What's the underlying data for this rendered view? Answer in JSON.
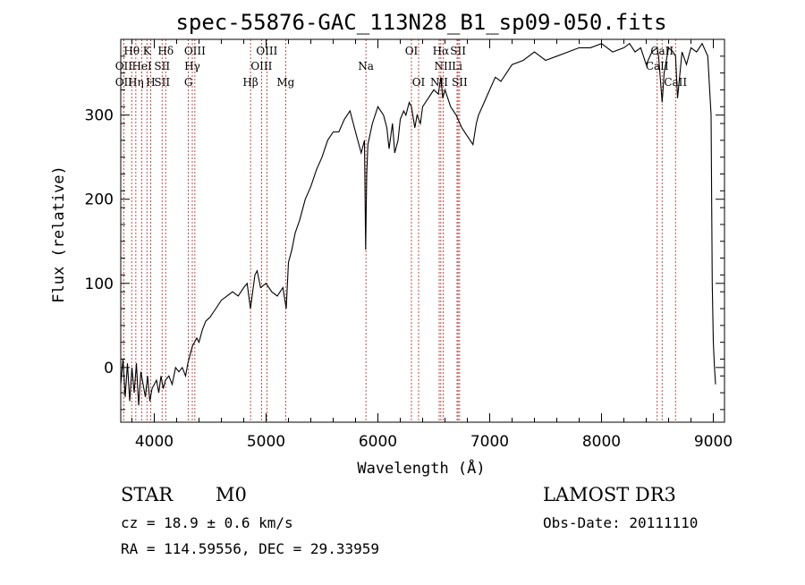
{
  "chart_data": {
    "type": "line",
    "title": "spec-55876-GAC_113N28_B1_sp09-050.fits",
    "xlabel": "Wavelength (Å)",
    "ylabel": "Flux (relative)",
    "xlim": [
      3700,
      9100
    ],
    "ylim": [
      -65,
      390
    ],
    "x_ticks": [
      4000,
      5000,
      6000,
      7000,
      8000,
      9000
    ],
    "y_ticks": [
      0,
      100,
      200,
      300
    ],
    "grid": false,
    "series": [
      {
        "color": "#000000",
        "x": [
          3700,
          3720,
          3740,
          3760,
          3780,
          3800,
          3820,
          3840,
          3860,
          3880,
          3900,
          3920,
          3940,
          3960,
          3980,
          4000,
          4020,
          4040,
          4060,
          4080,
          4100,
          4130,
          4160,
          4190,
          4220,
          4250,
          4280,
          4300,
          4320,
          4340,
          4360,
          4380,
          4400,
          4430,
          4460,
          4500,
          4550,
          4600,
          4650,
          4700,
          4750,
          4800,
          4830,
          4860,
          4880,
          4900,
          4920,
          4950,
          5000,
          5050,
          5100,
          5150,
          5180,
          5200,
          5230,
          5260,
          5300,
          5350,
          5400,
          5450,
          5500,
          5550,
          5600,
          5650,
          5700,
          5750,
          5800,
          5850,
          5880,
          5890,
          5900,
          5910,
          5950,
          6000,
          6050,
          6080,
          6100,
          6130,
          6150,
          6180,
          6200,
          6230,
          6250,
          6280,
          6300,
          6330,
          6350,
          6380,
          6400,
          6450,
          6500,
          6540,
          6563,
          6580,
          6600,
          6650,
          6700,
          6750,
          6800,
          6850,
          6880,
          6900,
          6950,
          7000,
          7050,
          7100,
          7150,
          7200,
          7300,
          7400,
          7500,
          7600,
          7700,
          7800,
          7900,
          8000,
          8100,
          8200,
          8250,
          8300,
          8350,
          8400,
          8450,
          8498,
          8510,
          8542,
          8560,
          8600,
          8640,
          8662,
          8680,
          8720,
          8760,
          8800,
          8850,
          8900,
          8950,
          8980,
          8990,
          9000,
          9010,
          9020
        ],
        "y": [
          -20,
          10,
          -35,
          5,
          -40,
          0,
          -30,
          5,
          -45,
          -5,
          -20,
          -35,
          -10,
          -40,
          -25,
          -20,
          -15,
          -30,
          -10,
          -25,
          -15,
          -10,
          -20,
          0,
          -5,
          0,
          -10,
          5,
          15,
          25,
          30,
          35,
          30,
          45,
          55,
          60,
          70,
          80,
          85,
          90,
          85,
          95,
          100,
          70,
          90,
          110,
          115,
          95,
          100,
          90,
          85,
          95,
          70,
          125,
          140,
          160,
          175,
          200,
          215,
          235,
          250,
          270,
          280,
          280,
          295,
          305,
          280,
          255,
          270,
          140,
          230,
          265,
          290,
          310,
          300,
          285,
          260,
          290,
          255,
          270,
          295,
          305,
          300,
          315,
          310,
          285,
          300,
          290,
          310,
          320,
          330,
          325,
          345,
          320,
          330,
          310,
          300,
          285,
          275,
          265,
          290,
          300,
          315,
          330,
          345,
          340,
          350,
          360,
          365,
          375,
          365,
          370,
          375,
          380,
          380,
          385,
          375,
          380,
          385,
          375,
          380,
          360,
          375,
          380,
          370,
          315,
          350,
          380,
          375,
          370,
          320,
          375,
          360,
          380,
          375,
          385,
          370,
          300,
          100,
          30,
          0,
          -20
        ]
      }
    ],
    "line_markers": [
      {
        "label": "Hθ",
        "wavelength": 3798,
        "row": 0
      },
      {
        "label": "K",
        "wavelength": 3934,
        "row": 0
      },
      {
        "label": "Hδ",
        "wavelength": 4102,
        "row": 0
      },
      {
        "label": "OIII",
        "wavelength": 4363,
        "row": 0
      },
      {
        "label": "OIII",
        "wavelength": 5007,
        "row": 0
      },
      {
        "label": "OI",
        "wavelength": 6300,
        "row": 0
      },
      {
        "label": "Hα",
        "wavelength": 6563,
        "row": 0
      },
      {
        "label": "SII",
        "wavelength": 6717,
        "row": 0
      },
      {
        "label": "CaII",
        "wavelength": 8542,
        "row": 0
      },
      {
        "label": "OII",
        "wavelength": 3727,
        "row": 1
      },
      {
        "label": "HeI",
        "wavelength": 3889,
        "row": 1
      },
      {
        "label": "SII",
        "wavelength": 4070,
        "row": 1
      },
      {
        "label": "Hγ",
        "wavelength": 4340,
        "row": 1
      },
      {
        "label": "OIII",
        "wavelength": 4959,
        "row": 1
      },
      {
        "label": "Na",
        "wavelength": 5893,
        "row": 1
      },
      {
        "label": "NII",
        "wavelength": 6584,
        "row": 1
      },
      {
        "label": "Li",
        "wavelength": 6708,
        "row": 1
      },
      {
        "label": "CaII",
        "wavelength": 8498,
        "row": 1
      },
      {
        "label": "OII",
        "wavelength": 3727,
        "row": 2
      },
      {
        "label": "Hη",
        "wavelength": 3835,
        "row": 2
      },
      {
        "label": "H",
        "wavelength": 3968,
        "row": 2
      },
      {
        "label": "SII",
        "wavelength": 4070,
        "row": 2
      },
      {
        "label": "G",
        "wavelength": 4305,
        "row": 2
      },
      {
        "label": "Hβ",
        "wavelength": 4861,
        "row": 2
      },
      {
        "label": "Mg",
        "wavelength": 5175,
        "row": 2
      },
      {
        "label": "OI",
        "wavelength": 6364,
        "row": 2
      },
      {
        "label": "NII",
        "wavelength": 6548,
        "row": 2
      },
      {
        "label": "SII",
        "wavelength": 6731,
        "row": 2
      },
      {
        "label": "CaII",
        "wavelength": 8662,
        "row": 2
      }
    ],
    "marker_lines": [
      3727,
      3798,
      3835,
      3889,
      3934,
      3968,
      4070,
      4102,
      4305,
      4340,
      4363,
      4861,
      4959,
      5007,
      5175,
      5893,
      6300,
      6364,
      6548,
      6563,
      6584,
      6708,
      6717,
      6731,
      8498,
      8542,
      8662
    ]
  },
  "info": {
    "class_label": "STAR",
    "subclass": "M0",
    "survey": "LAMOST DR3",
    "redshift_text": "cz = 18.9 ± 0.6 km/s",
    "obs_date": "Obs-Date: 20111110",
    "coords": "RA = 114.59556, DEC =  29.33959"
  }
}
